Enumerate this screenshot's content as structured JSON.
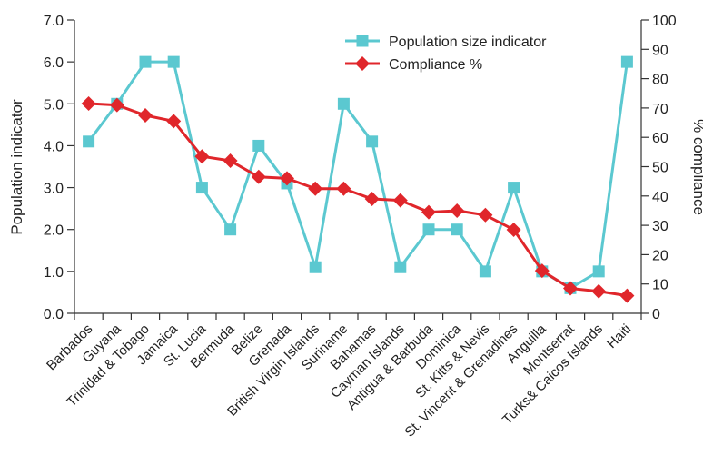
{
  "chart_data": {
    "type": "line",
    "title": "",
    "ylabel_left": "Population indicator",
    "ylabel_right": "% compliance",
    "xlabel": "",
    "categories": [
      "Barbados",
      "Guyana",
      "Trinidad & Tobago",
      "Jamaica",
      "St. Lucia",
      "Bermuda",
      "Belize",
      "Grenada",
      "British Virgin Islands",
      "Suriname",
      "Bahamas",
      "Cayman Islands",
      "Antigua & Barbuda",
      "Dominica",
      "St. Kitts & Nevis",
      "St. Vincent & Grenadines",
      "Anguilla",
      "Montserrat",
      "Turks& Caicos Islands",
      "Haiti"
    ],
    "left_axis": {
      "ylim": [
        0,
        7
      ],
      "ticks": [
        "0.0",
        "1.0",
        "2.0",
        "3.0",
        "4.0",
        "5.0",
        "6.0",
        "7.0"
      ]
    },
    "right_axis": {
      "ylim": [
        0,
        100
      ],
      "ticks": [
        "0",
        "10",
        "20",
        "30",
        "40",
        "50",
        "60",
        "70",
        "80",
        "90",
        "100"
      ]
    },
    "series": [
      {
        "name": "Population size indicator",
        "axis": "left",
        "color": "#5bc8d0",
        "marker": "square",
        "values": [
          4.1,
          5.0,
          6.0,
          6.0,
          3.0,
          2.0,
          4.0,
          3.1,
          1.1,
          5.0,
          4.1,
          1.1,
          2.0,
          2.0,
          1.0,
          3.0,
          1.0,
          0.6,
          1.0,
          6.0
        ]
      },
      {
        "name": "Compliance %",
        "axis": "right",
        "color": "#e0262b",
        "marker": "diamond",
        "values": [
          71.5,
          71,
          67.5,
          65.5,
          53.5,
          52,
          46.5,
          46,
          42.5,
          42.5,
          39,
          38.5,
          34.5,
          35,
          33.5,
          28.5,
          14.5,
          8.5,
          7.5,
          6
        ]
      }
    ],
    "legend_position": "top-right",
    "grid": false
  }
}
